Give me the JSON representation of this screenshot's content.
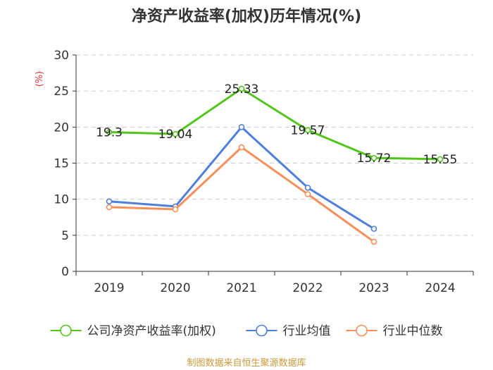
{
  "chart_data": {
    "type": "line",
    "title": "净资产收益率(加权)历年情况(%)",
    "ylabel": "(%)",
    "xlabel": "",
    "categories": [
      "2019",
      "2020",
      "2021",
      "2022",
      "2023",
      "2024"
    ],
    "ylim": [
      0,
      30
    ],
    "yticks": [
      0,
      5,
      10,
      15,
      20,
      25,
      30
    ],
    "grid": true,
    "legend_position": "bottom",
    "series": [
      {
        "name": "公司净资产收益率(加权)",
        "color": "#52c41a",
        "values": [
          19.3,
          19.04,
          25.33,
          19.57,
          15.72,
          15.55
        ],
        "labels": [
          "19.3",
          "19.04",
          "25.33",
          "19.57",
          "15.72",
          "15.55"
        ],
        "show_labels": true
      },
      {
        "name": "行业均值",
        "color": "#4f7fdd",
        "values": [
          9.7,
          9.0,
          20.0,
          11.6,
          5.9,
          null
        ],
        "show_labels": false
      },
      {
        "name": "行业中位数",
        "color": "#f5905c",
        "values": [
          8.9,
          8.6,
          17.2,
          10.7,
          4.1,
          null
        ],
        "show_labels": false
      }
    ]
  },
  "footer": {
    "source": "制图数据来自恒生聚源数据库"
  }
}
